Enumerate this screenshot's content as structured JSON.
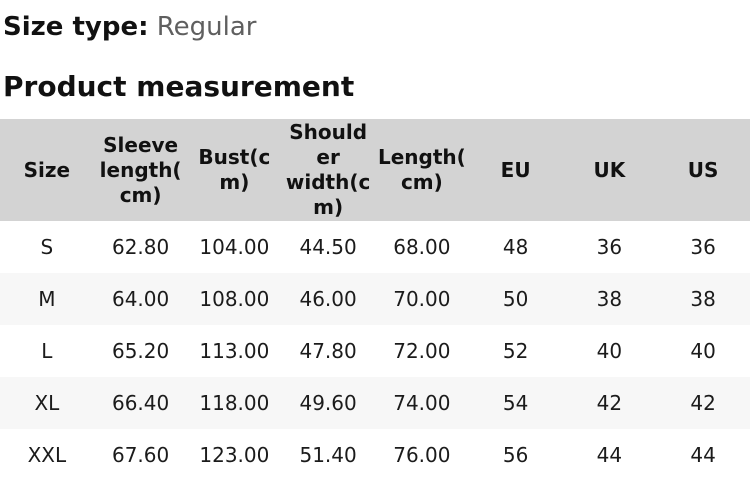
{
  "page": {
    "size_type_label": "Size type:",
    "size_type_value": "Regular",
    "section_title": "Product measurement"
  },
  "colors": {
    "header_bg": "#d3d3d3",
    "row_alt_bg": "#f7f7f7",
    "text_primary": "#111111",
    "text_muted": "#5f5f5f"
  },
  "table": {
    "columns": [
      {
        "id": "size",
        "label": "Size"
      },
      {
        "id": "sleeve_length_cm",
        "label": "Sleeve\nlength(\ncm)"
      },
      {
        "id": "bust_cm",
        "label": "Bust(c\nm)"
      },
      {
        "id": "shoulder_width_cm",
        "label": "Should\ner\nwidth(c\nm)"
      },
      {
        "id": "length_cm",
        "label": "Length(\ncm)"
      },
      {
        "id": "eu",
        "label": "EU"
      },
      {
        "id": "uk",
        "label": "UK"
      },
      {
        "id": "us",
        "label": "US"
      }
    ],
    "rows": [
      {
        "cells": [
          "S",
          "62.80",
          "104.00",
          "44.50",
          "68.00",
          "48",
          "36",
          "36"
        ]
      },
      {
        "cells": [
          "M",
          "64.00",
          "108.00",
          "46.00",
          "70.00",
          "50",
          "38",
          "38"
        ]
      },
      {
        "cells": [
          "L",
          "65.20",
          "113.00",
          "47.80",
          "72.00",
          "52",
          "40",
          "40"
        ]
      },
      {
        "cells": [
          "XL",
          "66.40",
          "118.00",
          "49.60",
          "74.00",
          "54",
          "42",
          "42"
        ]
      },
      {
        "cells": [
          "XXL",
          "67.60",
          "123.00",
          "51.40",
          "76.00",
          "56",
          "44",
          "44"
        ]
      }
    ]
  }
}
